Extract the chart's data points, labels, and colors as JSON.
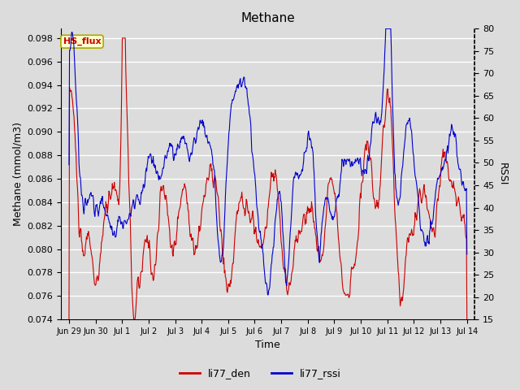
{
  "title": "Methane",
  "xlabel": "Time",
  "ylabel_left": "Methane (mmol/m3)",
  "ylabel_right": "RSSI",
  "ylim_left": [
    0.074,
    0.0988
  ],
  "ylim_right": [
    15,
    80
  ],
  "yticks_left": [
    0.074,
    0.076,
    0.078,
    0.08,
    0.082,
    0.084,
    0.086,
    0.088,
    0.09,
    0.092,
    0.094,
    0.096,
    0.098
  ],
  "yticks_right": [
    15,
    20,
    25,
    30,
    35,
    40,
    45,
    50,
    55,
    60,
    65,
    70,
    75,
    80
  ],
  "xtick_labels": [
    "Jun 29",
    "Jun 30",
    "Jul 1",
    "Jul 2",
    "Jul 3",
    "Jul 4",
    "Jul 5",
    "Jul 6",
    "Jul 7",
    "Jul 8",
    "Jul 9",
    "Jul 10",
    "Jul 11",
    "Jul 12",
    "Jul 13",
    "Jul 14"
  ],
  "color_red": "#cc0000",
  "color_blue": "#0000cc",
  "legend_label_red": "li77_den",
  "legend_label_blue": "li77_rssi",
  "annotation_text": "HS_flux",
  "annotation_bg": "#ffffcc",
  "annotation_border": "#aaaa00",
  "plot_bg_color": "#dcdcdc",
  "fig_bg_color": "#dcdcdc",
  "grid_color": "#ffffff",
  "title_fontsize": 11,
  "axis_fontsize": 9,
  "tick_fontsize": 8,
  "legend_fontsize": 9
}
